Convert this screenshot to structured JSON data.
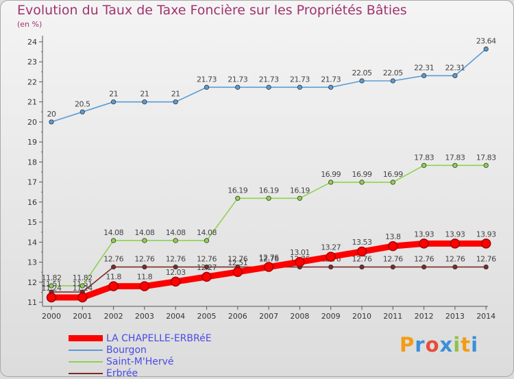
{
  "chart_data": {
    "type": "line",
    "title": "Evolution du Taux de Taxe Foncière sur les Propriétés Bâties",
    "unit_label": "(en %)",
    "xlabel": "",
    "ylabel": "",
    "ylim": [
      11,
      24
    ],
    "y_ticks": [
      "11",
      "12",
      "13",
      "14",
      "15",
      "16",
      "17",
      "18",
      "19",
      "20",
      "21",
      "22",
      "23",
      "24"
    ],
    "categories": [
      "2000",
      "2001",
      "2002",
      "2003",
      "2004",
      "2005",
      "2006",
      "2007",
      "2008",
      "2009",
      "2010",
      "2011",
      "2012",
      "2013",
      "2014"
    ],
    "grid": "none",
    "legend_position": "bottom-left",
    "series": [
      {
        "name": "LA CHAPELLE-ERBRéE",
        "color": "#ff0000",
        "values": [
          11.24,
          11.24,
          11.8,
          11.8,
          12.03,
          12.27,
          12.51,
          12.76,
          13.01,
          13.27,
          13.53,
          13.8,
          13.93,
          13.93,
          13.93
        ],
        "labels": [
          "11.24",
          "11.24",
          "11.8",
          "11.8",
          "12.03",
          "12.27",
          "12.51",
          "12.76",
          "13.01",
          "13.27",
          "13.53",
          "13.8",
          "13.93",
          "13.93",
          "13.93"
        ]
      },
      {
        "name": "Bourgon",
        "color": "#5b9bd5",
        "values": [
          20,
          20.5,
          21,
          21,
          21,
          21.73,
          21.73,
          21.73,
          21.73,
          21.73,
          22.05,
          22.05,
          22.31,
          22.31,
          23.64
        ],
        "labels": [
          "20",
          "20.5",
          "21",
          "21",
          "21",
          "21.73",
          "21.73",
          "21.73",
          "21.73",
          "21.73",
          "22.05",
          "22.05",
          "22.31",
          "22.31",
          "23.64"
        ]
      },
      {
        "name": "Saint-M'Hervé",
        "color": "#8fd14f",
        "values": [
          11.82,
          11.82,
          14.08,
          14.08,
          14.08,
          14.08,
          16.19,
          16.19,
          16.19,
          16.99,
          16.99,
          16.99,
          17.83,
          17.83,
          17.83
        ],
        "labels": [
          "11.82",
          "11.82",
          "14.08",
          "14.08",
          "14.08",
          "14.08",
          "16.19",
          "16.19",
          "16.19",
          "16.99",
          "16.99",
          "16.99",
          "17.83",
          "17.83",
          "17.83"
        ]
      },
      {
        "name": "Erbrée",
        "color": "#7b2a2a",
        "values": [
          11.51,
          11.51,
          12.76,
          12.76,
          12.76,
          12.76,
          12.76,
          12.76,
          12.76,
          12.76,
          12.76,
          12.76,
          12.76,
          12.76,
          12.76
        ],
        "labels": [
          "11.51",
          "11.51",
          "12.76",
          "12.76",
          "12.76",
          "12.76",
          "12.76",
          "12.76",
          "12.76",
          "12.76",
          "12.76",
          "12.76",
          "12.76",
          "12.76",
          "12.76"
        ]
      }
    ]
  },
  "logo": {
    "letters": [
      "P",
      "r",
      "o",
      "x",
      "i",
      "t",
      "i"
    ],
    "colors": [
      "#f39c12",
      "#3a8fd8",
      "#e74c3c",
      "#3a8fd8",
      "#8bc34a",
      "#f39c12",
      "#3a8fd8"
    ]
  }
}
